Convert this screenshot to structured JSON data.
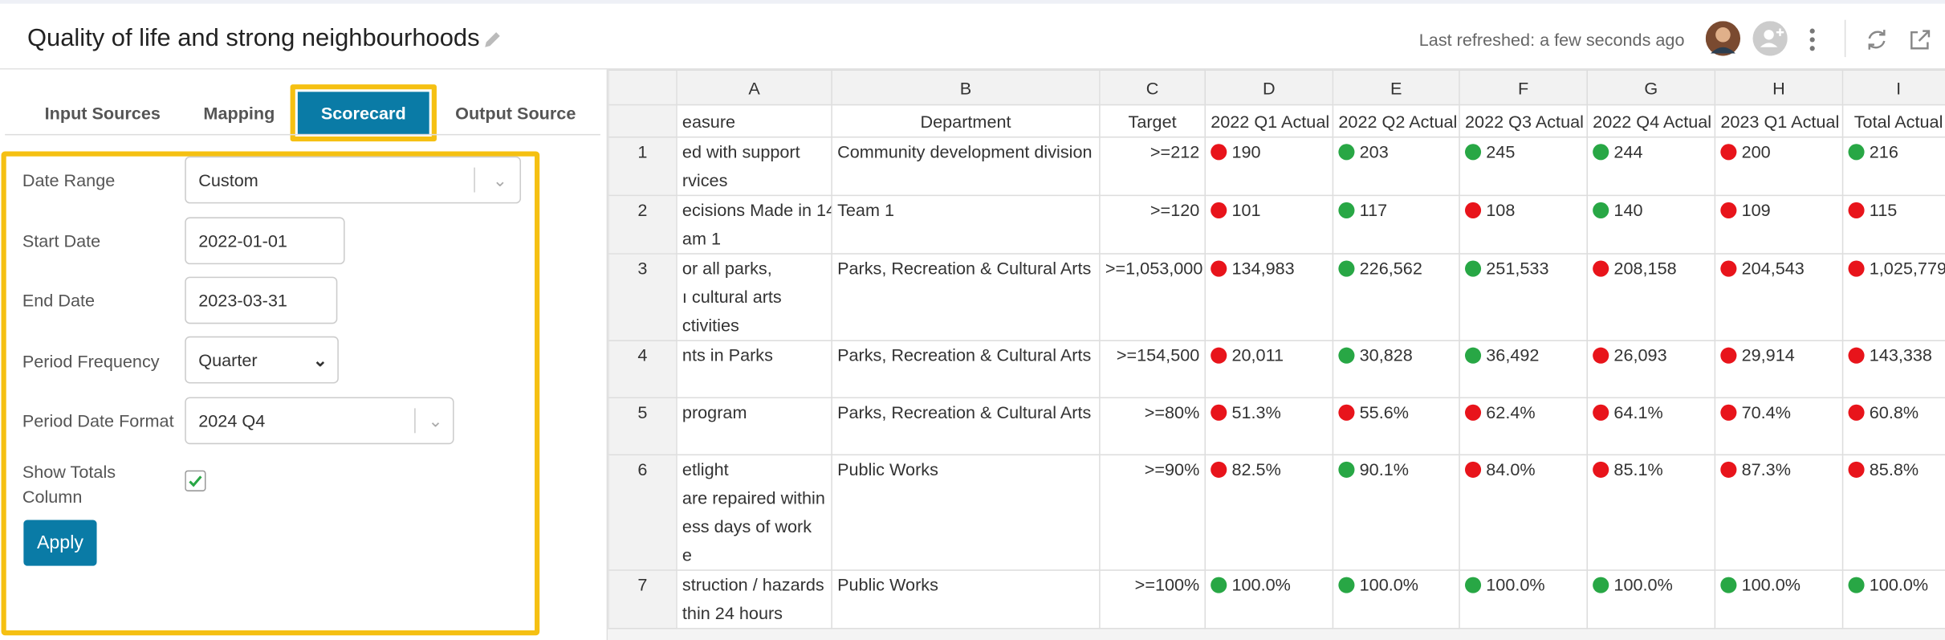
{
  "header": {
    "title": "Quality of life and strong neighbourhoods",
    "last_refreshed": "Last refreshed: a few seconds ago"
  },
  "tabs": {
    "items": [
      "Input Sources",
      "Mapping",
      "Scorecard",
      "Output Source"
    ],
    "active": 2
  },
  "form": {
    "date_range": {
      "label": "Date Range",
      "value": "Custom"
    },
    "start_date": {
      "label": "Start Date",
      "value": "2022-01-01"
    },
    "end_date": {
      "label": "End Date",
      "value": "2023-03-31"
    },
    "period_frequency": {
      "label": "Period Frequency",
      "value": "Quarter"
    },
    "period_date_format": {
      "label": "Period Date Format",
      "value": "2024 Q4"
    },
    "show_totals": {
      "label": "Show Totals Column"
    },
    "apply": "Apply"
  },
  "grid": {
    "letters": [
      "A",
      "B",
      "C",
      "D",
      "E",
      "F",
      "G",
      "H",
      "I"
    ],
    "headers": [
      "easure",
      "Department",
      "Target",
      "2022 Q1 Actual",
      "2022 Q2 Actual",
      "2022 Q3 Actual",
      "2022 Q4 Actual",
      "2023 Q1 Actual",
      "Total Actual"
    ],
    "red": "#e8141b",
    "green": "#28a745",
    "rows": [
      {
        "number": "1",
        "measure": [
          "ed with support",
          "rvices"
        ],
        "department": "Community development division",
        "target": ">=212",
        "values": [
          "190",
          "203",
          "245",
          "244",
          "200",
          "216"
        ],
        "status": [
          "red",
          "green",
          "green",
          "green",
          "red",
          "green"
        ]
      },
      {
        "number": "2",
        "measure": [
          "ecisions Made in 14",
          "am 1"
        ],
        "department": "Team 1",
        "target": ">=120",
        "values": [
          "101",
          "117",
          "108",
          "140",
          "109",
          "115"
        ],
        "status": [
          "red",
          "green",
          "red",
          "green",
          "red",
          "red"
        ]
      },
      {
        "number": "3",
        "measure": [
          "or all parks,",
          "ı cultural arts",
          "ctivities"
        ],
        "department": "Parks, Recreation & Cultural Arts",
        "target": ">=1,053,000",
        "values": [
          "134,983",
          "226,562",
          "251,533",
          "208,158",
          "204,543",
          "1,025,779"
        ],
        "status": [
          "red",
          "green",
          "green",
          "red",
          "red",
          "red"
        ]
      },
      {
        "number": "4",
        "measure": [
          "nts in Parks"
        ],
        "department": "Parks, Recreation & Cultural Arts",
        "target": ">=154,500",
        "values": [
          "20,011",
          "30,828",
          "36,492",
          "26,093",
          "29,914",
          "143,338"
        ],
        "status": [
          "red",
          "green",
          "green",
          "red",
          "red",
          "red"
        ]
      },
      {
        "number": "5",
        "measure": [
          "program"
        ],
        "department": "Parks, Recreation & Cultural Arts",
        "target": ">=80%",
        "values": [
          "51.3%",
          "55.6%",
          "62.4%",
          "64.1%",
          "70.4%",
          "60.8%"
        ],
        "status": [
          "red",
          "red",
          "red",
          "red",
          "red",
          "red"
        ]
      },
      {
        "number": "6",
        "measure": [
          "etlight",
          "are repaired within",
          "ess days of work",
          "e"
        ],
        "department": "Public Works",
        "target": ">=90%",
        "values": [
          "82.5%",
          "90.1%",
          "84.0%",
          "85.1%",
          "87.3%",
          "85.8%"
        ],
        "status": [
          "red",
          "green",
          "red",
          "red",
          "red",
          "red"
        ]
      },
      {
        "number": "7",
        "measure": [
          "struction / hazards",
          "thin 24 hours"
        ],
        "department": "Public Works",
        "target": ">=100%",
        "values": [
          "100.0%",
          "100.0%",
          "100.0%",
          "100.0%",
          "100.0%",
          "100.0%"
        ],
        "status": [
          "green",
          "green",
          "green",
          "green",
          "green",
          "green"
        ]
      }
    ]
  }
}
